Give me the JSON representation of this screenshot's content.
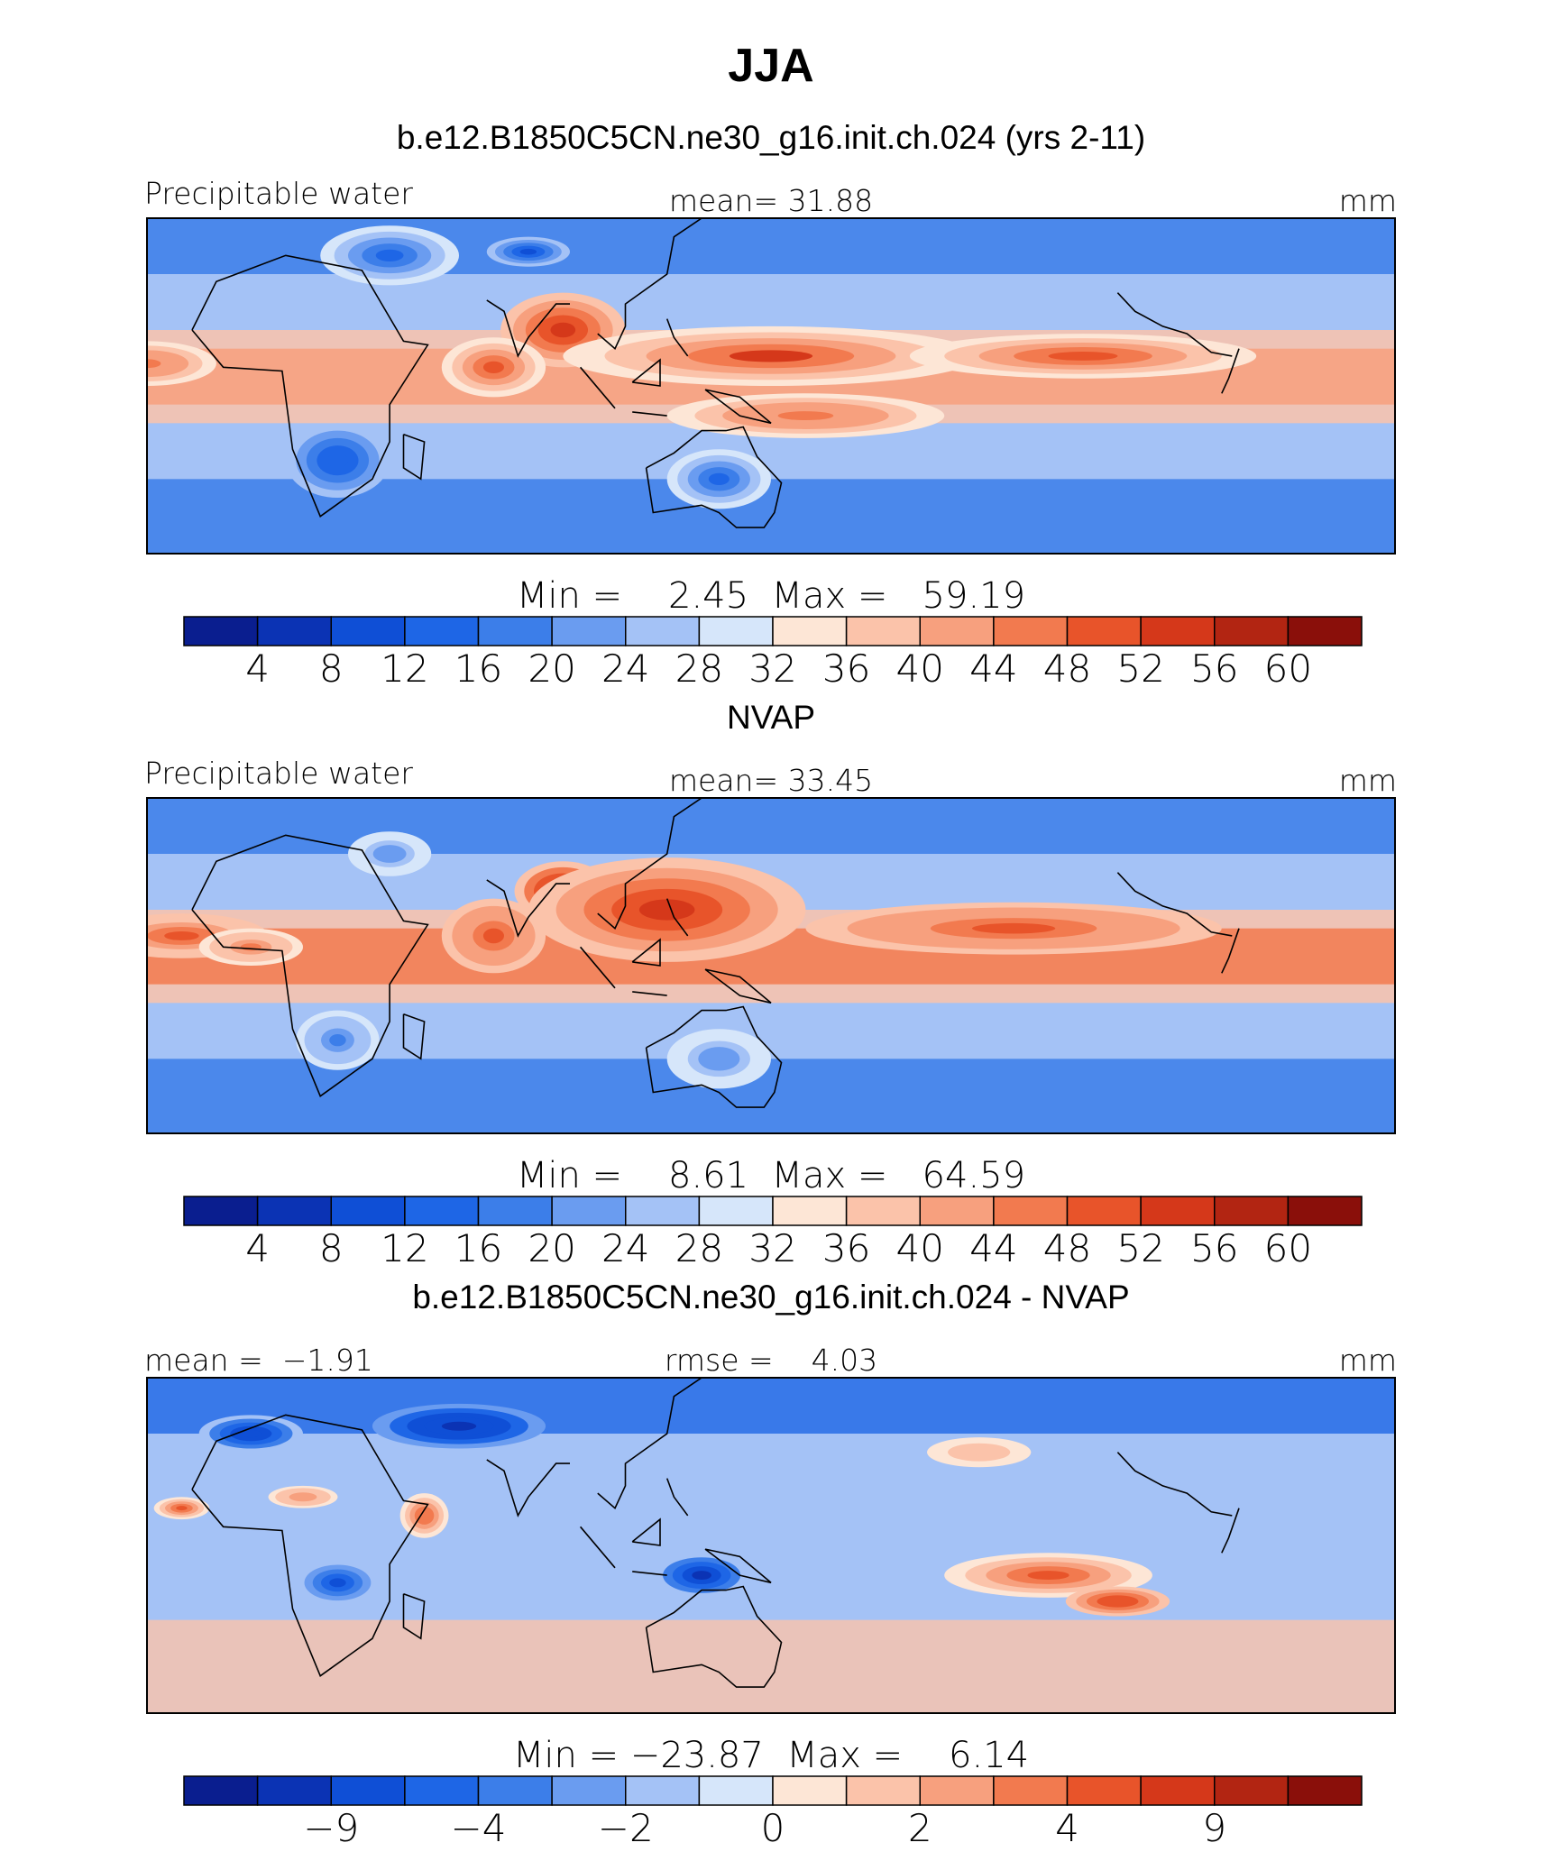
{
  "page_title": "JJA",
  "chart_data": [
    {
      "type": "heatmap",
      "title": "b.e12.B1850C5CN.ne30_g16.init.ch.024 (yrs 2-11)",
      "left_label": "Precipitable water",
      "center_label": "mean=   31.88",
      "right_label": "mm",
      "minmax_label": "Min =    2.45  Max =   59.19",
      "min": 2.45,
      "max": 59.19,
      "mean": 31.88,
      "colorbar_ticks": [
        "4",
        "8",
        "12",
        "16",
        "20",
        "24",
        "28",
        "32",
        "36",
        "40",
        "44",
        "48",
        "52",
        "56",
        "60"
      ],
      "colorbar_colors": [
        "#0a1e8f",
        "#0b33b4",
        "#0f4fd6",
        "#1e66e6",
        "#3c7ee9",
        "#6a9cf0",
        "#a4c2f6",
        "#d6e6fa",
        "#fde6d6",
        "#fbc3aa",
        "#f7a07e",
        "#f27a4f",
        "#e8542a",
        "#d5381a",
        "#b22512",
        "#8a0f0a"
      ],
      "blobs": [
        {
          "lon": 90,
          "lat": 15,
          "rx": 18,
          "ry": 10,
          "v": 54
        },
        {
          "lon": 150,
          "lat": 8,
          "rx": 60,
          "ry": 8,
          "v": 52
        },
        {
          "lon": -120,
          "lat": 8,
          "rx": 50,
          "ry": 6,
          "v": 50
        },
        {
          "lon": -30,
          "lat": 6,
          "rx": 20,
          "ry": 6,
          "v": 46
        },
        {
          "lon": 70,
          "lat": 5,
          "rx": 15,
          "ry": 8,
          "v": 48
        },
        {
          "lon": 160,
          "lat": -8,
          "rx": 40,
          "ry": 6,
          "v": 46
        },
        {
          "lon": 40,
          "lat": 35,
          "rx": 20,
          "ry": 8,
          "v": 14
        },
        {
          "lon": 80,
          "lat": 36,
          "rx": 12,
          "ry": 4,
          "v": 8
        },
        {
          "lon": 25,
          "lat": -20,
          "rx": 15,
          "ry": 10,
          "v": 12
        },
        {
          "lon": 135,
          "lat": -25,
          "rx": 15,
          "ry": 8,
          "v": 14
        }
      ]
    },
    {
      "type": "heatmap",
      "title": "NVAP",
      "left_label": "Precipitable water",
      "center_label": "mean=   33.45",
      "right_label": "mm",
      "minmax_label": "Min =    8.61  Max =   64.59",
      "min": 8.61,
      "max": 64.59,
      "mean": 33.45,
      "colorbar_ticks": [
        "4",
        "8",
        "12",
        "16",
        "20",
        "24",
        "28",
        "32",
        "36",
        "40",
        "44",
        "48",
        "52",
        "56",
        "60"
      ],
      "colorbar_colors": [
        "#0a1e8f",
        "#0b33b4",
        "#0f4fd6",
        "#1e66e6",
        "#3c7ee9",
        "#6a9cf0",
        "#a4c2f6",
        "#d6e6fa",
        "#fde6d6",
        "#fbc3aa",
        "#f7a07e",
        "#f27a4f",
        "#e8542a",
        "#d5381a",
        "#b22512",
        "#8a0f0a"
      ],
      "blobs": [
        {
          "lon": 90,
          "lat": 20,
          "rx": 14,
          "ry": 8,
          "v": 60
        },
        {
          "lon": 120,
          "lat": 15,
          "rx": 40,
          "ry": 14,
          "v": 54
        },
        {
          "lon": -140,
          "lat": 10,
          "rx": 60,
          "ry": 7,
          "v": 50
        },
        {
          "lon": -20,
          "lat": 8,
          "rx": 25,
          "ry": 6,
          "v": 48
        },
        {
          "lon": 70,
          "lat": 8,
          "rx": 15,
          "ry": 10,
          "v": 50
        },
        {
          "lon": 0,
          "lat": 5,
          "rx": 15,
          "ry": 5,
          "v": 44
        },
        {
          "lon": 40,
          "lat": 30,
          "rx": 12,
          "ry": 6,
          "v": 20
        },
        {
          "lon": 25,
          "lat": -20,
          "rx": 12,
          "ry": 8,
          "v": 18
        },
        {
          "lon": 135,
          "lat": -25,
          "rx": 15,
          "ry": 8,
          "v": 20
        }
      ]
    },
    {
      "type": "heatmap",
      "title": "b.e12.B1850C5CN.ne30_g16.init.ch.024 - NVAP",
      "left_label": "mean =  −1.91",
      "center_label": "rmse =    4.03",
      "right_label": "mm",
      "minmax_label": "Min = −23.87  Max =    6.14",
      "min": -23.87,
      "max": 6.14,
      "mean": -1.91,
      "rmse": 4.03,
      "colorbar_ticks": [
        "−9",
        "−4",
        "−2",
        "0",
        "2",
        "4",
        "9"
      ],
      "colorbar_colors": [
        "#0a1e8f",
        "#0b33b4",
        "#0f4fd6",
        "#1e66e6",
        "#3c7ee9",
        "#6a9cf0",
        "#a4c2f6",
        "#d6e6fa",
        "#fde6d6",
        "#fbc3aa",
        "#f7a07e",
        "#f27a4f",
        "#e8542a",
        "#d5381a",
        "#b22512",
        "#8a0f0a"
      ],
      "blobs": [
        {
          "lon": 60,
          "lat": 32,
          "rx": 25,
          "ry": 6,
          "v": -10
        },
        {
          "lon": 0,
          "lat": 30,
          "rx": 15,
          "ry": 5,
          "v": -8
        },
        {
          "lon": -130,
          "lat": -8,
          "rx": 30,
          "ry": 6,
          "v": 5
        },
        {
          "lon": -110,
          "lat": -15,
          "rx": 15,
          "ry": 4,
          "v": 6
        },
        {
          "lon": -20,
          "lat": 10,
          "rx": 8,
          "ry": 3,
          "v": 5
        },
        {
          "lon": 50,
          "lat": 8,
          "rx": 7,
          "ry": 6,
          "v": 4
        },
        {
          "lon": 15,
          "lat": 13,
          "rx": 10,
          "ry": 3,
          "v": 3
        },
        {
          "lon": 130,
          "lat": -8,
          "rx": 14,
          "ry": 6,
          "v": -9
        },
        {
          "lon": 25,
          "lat": -10,
          "rx": 12,
          "ry": 6,
          "v": -6
        },
        {
          "lon": -150,
          "lat": 25,
          "rx": 15,
          "ry": 4,
          "v": 2
        }
      ]
    }
  ]
}
